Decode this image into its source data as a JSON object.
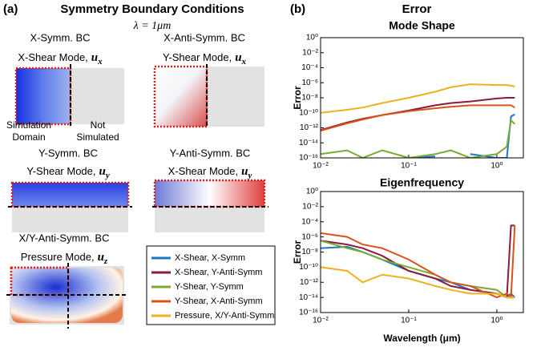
{
  "panel_a": {
    "label": "(a)",
    "title": "Symmetry Boundary Conditions",
    "wavelength": "λ = 1μm",
    "cells": [
      {
        "bc": "X-Symm. BC",
        "mode": {
          "text": "X-Shear Mode,",
          "var": "u",
          "sub": "x"
        }
      },
      {
        "bc": "X-Anti-Symm. BC",
        "mode": {
          "text": "Y-Shear Mode,",
          "var": "u",
          "sub": "x"
        }
      },
      {
        "bc": "Y-Symm. BC",
        "mode": {
          "text": "Y-Shear Mode,",
          "var": "u",
          "sub": "y"
        }
      },
      {
        "bc": "Y-Anti-Symm. BC",
        "mode": {
          "text": "X-Shear Mode,",
          "var": "u",
          "sub": "y"
        }
      },
      {
        "bc": "X/Y-Anti-Symm. BC",
        "mode": {
          "text": "Pressure Mode,",
          "var": "u",
          "sub": "z"
        }
      }
    ],
    "simulation_domain": [
      "Simulation",
      "Domain"
    ],
    "not_simulated": [
      "Not",
      "Simulated"
    ]
  },
  "panel_b": {
    "label": "(b)",
    "title": "Error"
  },
  "chart_data": [
    {
      "type": "line",
      "title": "Mode Shape",
      "y_label": "Error",
      "xlog": true,
      "ylog": true,
      "x": [
        0.01,
        0.02,
        0.03,
        0.05,
        0.1,
        0.2,
        0.3,
        0.5,
        1,
        1.3,
        1.45,
        1.6
      ],
      "xlim": [
        0.01,
        2
      ],
      "xticks": [
        {
          "value": 0.01,
          "label": "10⁻²"
        },
        {
          "value": 0.1,
          "label": "10⁻¹"
        },
        {
          "value": 1,
          "label": "10⁰"
        }
      ],
      "ylim": [
        1e-16,
        1
      ],
      "yticks": [
        {
          "value": 1,
          "label": "10⁰"
        },
        {
          "value": 0.01,
          "label": "10⁻²"
        },
        {
          "value": 0.0001,
          "label": "10⁻⁴"
        },
        {
          "value": 1e-06,
          "label": "10⁻⁶"
        },
        {
          "value": 1e-08,
          "label": "10⁻⁸"
        },
        {
          "value": 1e-10,
          "label": "10⁻¹⁰"
        },
        {
          "value": 1e-12,
          "label": "10⁻¹²"
        },
        {
          "value": 1e-14,
          "label": "10⁻¹⁴"
        },
        {
          "value": 1e-16,
          "label": "10⁻¹⁶"
        }
      ],
      "series": [
        {
          "name": "X-Shear, X-Symm",
          "color": "#1f77c4",
          "values": [
            6.3e-16,
            null,
            3.2e-16,
            null,
            1e-16,
            1.6e-16,
            null,
            3.2e-16,
            1e-16,
            1e-16,
            3.2e-11,
            6.3e-11
          ]
        },
        {
          "name": "X-Shear, Y-Anti-Symm",
          "color": "#8b1a3c",
          "values": [
            5e-13,
            5e-12,
            1.6e-11,
            5e-11,
            2e-10,
            1e-09,
            2e-09,
            3.2e-09,
            8e-09,
            1e-08,
            1e-08,
            1e-08
          ]
        },
        {
          "name": "Y-Shear, Y-Symm",
          "color": "#77ac30",
          "values": [
            3.2e-16,
            1e-15,
            1e-16,
            1e-15,
            1e-16,
            3.2e-16,
            1e-15,
            1e-16,
            3.2e-16,
            3.2e-15,
            1e-11,
            3.2e-12
          ]
        },
        {
          "name": "Y-Shear, X-Anti-Symm",
          "color": "#d95319",
          "values": [
            4e-13,
            4e-12,
            1.3e-11,
            5e-11,
            1.6e-10,
            4e-10,
            6.3e-10,
            1e-09,
            1e-09,
            1e-09,
            1e-09,
            5e-10
          ]
        },
        {
          "name": "Pressure, X/Y-Anti-Symm",
          "color": "#edb120",
          "values": [
            1e-10,
            2.5e-10,
            5e-10,
            2e-09,
            1e-08,
            6.3e-08,
            2.5e-07,
            6.3e-07,
            5e-07,
            5e-07,
            4e-07,
            3.2e-07
          ]
        }
      ]
    },
    {
      "type": "line",
      "title": "Eigenfrequency",
      "x_label": "Wavelength (μm)",
      "y_label": "Error",
      "xlog": true,
      "ylog": true,
      "x": [
        0.01,
        0.02,
        0.03,
        0.05,
        0.1,
        0.2,
        0.3,
        0.5,
        1,
        1.3,
        1.45,
        1.6
      ],
      "xlim": [
        0.01,
        2
      ],
      "xticks": [
        {
          "value": 0.01,
          "label": "10⁻²"
        },
        {
          "value": 0.1,
          "label": "10⁻¹"
        },
        {
          "value": 1,
          "label": "10⁰"
        }
      ],
      "ylim": [
        1e-16,
        1
      ],
      "yticks": [
        {
          "value": 1,
          "label": "10⁰"
        },
        {
          "value": 0.01,
          "label": "10⁻²"
        },
        {
          "value": 0.0001,
          "label": "10⁻⁴"
        },
        {
          "value": 1e-06,
          "label": "10⁻⁶"
        },
        {
          "value": 1e-08,
          "label": "10⁻⁸"
        },
        {
          "value": 1e-10,
          "label": "10⁻¹⁰"
        },
        {
          "value": 1e-12,
          "label": "10⁻¹²"
        },
        {
          "value": 1e-14,
          "label": "10⁻¹⁴"
        },
        {
          "value": 1e-16,
          "label": "10⁻¹⁶"
        }
      ],
      "series": [
        {
          "color": "#1f77c4",
          "values": [
            3.2e-08,
            5e-08,
            1e-08,
            1e-09,
            3.2e-11,
            3.2e-12,
            1e-12,
            1e-13,
            3.2e-14,
            1e-14,
            3.2e-14,
            1e-14
          ]
        },
        {
          "color": "#8b1a3c",
          "values": [
            3.2e-07,
            1e-07,
            3.2e-08,
            3.2e-09,
            3.2e-11,
            3.2e-12,
            3.2e-13,
            1e-13,
            3.2e-14,
            1e-14,
            3.2e-05,
            3.2e-05
          ]
        },
        {
          "color": "#77ac30",
          "values": [
            3.2e-07,
            3.2e-08,
            1e-08,
            1e-09,
            1e-10,
            1e-11,
            1e-12,
            3.2e-13,
            1e-13,
            1e-14,
            1e-14,
            1e-14
          ]
        },
        {
          "color": "#d95319",
          "values": [
            3.2e-06,
            1e-06,
            1e-07,
            3.2e-08,
            1e-09,
            1e-11,
            1e-12,
            3.2e-13,
            1e-14,
            3.2e-14,
            1e-14,
            3.2e-05
          ]
        },
        {
          "color": "#edb120",
          "values": [
            1e-10,
            3.2e-11,
            1e-12,
            1e-11,
            3.2e-12,
            3.2e-13,
            1e-13,
            3.2e-14,
            3.2e-14,
            1e-14,
            1e-14,
            1e-14
          ]
        }
      ]
    }
  ]
}
